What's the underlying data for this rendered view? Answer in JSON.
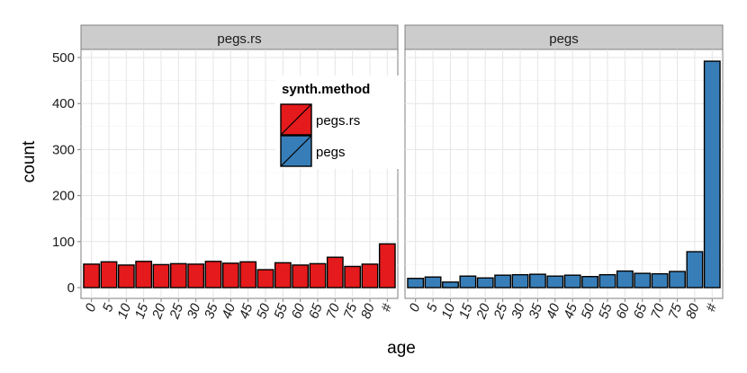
{
  "chart_data": {
    "type": "bar",
    "xlabel": "age",
    "ylabel": "count",
    "ylim": [
      0,
      550
    ],
    "yticks": [
      0,
      100,
      200,
      300,
      400,
      500
    ],
    "grid": true,
    "categories": [
      "0",
      "5",
      "10",
      "15",
      "20",
      "25",
      "30",
      "35",
      "40",
      "45",
      "50",
      "55",
      "60",
      "65",
      "70",
      "75",
      "80",
      "#"
    ],
    "legend": {
      "title": "synth.method",
      "placement": "top-right of left panel",
      "entries": [
        {
          "label": "pegs.rs",
          "color": "#e41a1c"
        },
        {
          "label": "pegs",
          "color": "#377eb8"
        }
      ]
    },
    "panels": [
      {
        "strip": "pegs.rs",
        "color": "#e41a1c",
        "values": [
          51,
          56,
          49,
          57,
          50,
          52,
          51,
          57,
          53,
          56,
          39,
          54,
          49,
          52,
          66,
          46,
          51,
          95
        ]
      },
      {
        "strip": "pegs",
        "color": "#377eb8",
        "values": [
          20,
          23,
          12,
          25,
          21,
          27,
          28,
          29,
          25,
          27,
          24,
          28,
          36,
          31,
          30,
          35,
          78,
          492
        ]
      }
    ]
  }
}
